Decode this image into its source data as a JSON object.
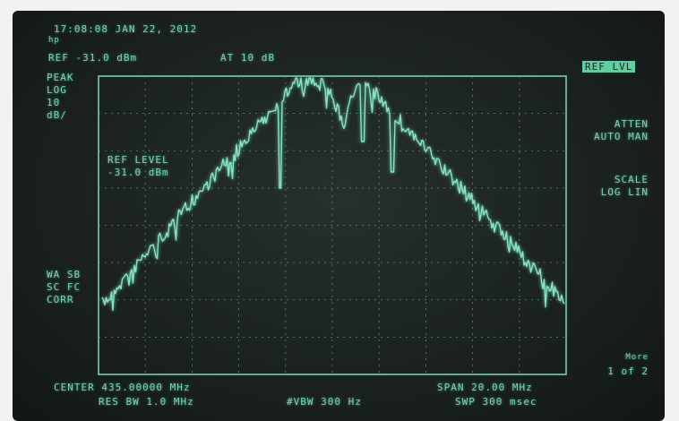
{
  "header": {
    "timestamp": "17:08:08 JAN 22, 2012",
    "logo": "hp",
    "ref": "REF -31.0 dBm",
    "atten": "AT 10 dB"
  },
  "left_panel": {
    "detector": "PEAK",
    "scale": "LOG",
    "per_div": "10",
    "unit": "dB/",
    "flags": [
      "WA SB",
      "SC FC",
      "CORR"
    ]
  },
  "marker": {
    "label": "REF LEVEL",
    "value": "-31.0 dBm"
  },
  "softkeys": {
    "active": "REF LVL",
    "atten_title": "ATTEN",
    "atten_opts": "AUTO MAN",
    "scale_title": "SCALE",
    "scale_opts": "LOG LIN",
    "more": "More",
    "page": "1 of 2"
  },
  "footer": {
    "center": "CENTER 435.00000 MHz",
    "span": "SPAN 20.00 MHz",
    "rbw": "RES BW 1.0 MHz",
    "vbw": "#VBW 300 Hz",
    "sweep": "SWP 300 msec"
  }
}
